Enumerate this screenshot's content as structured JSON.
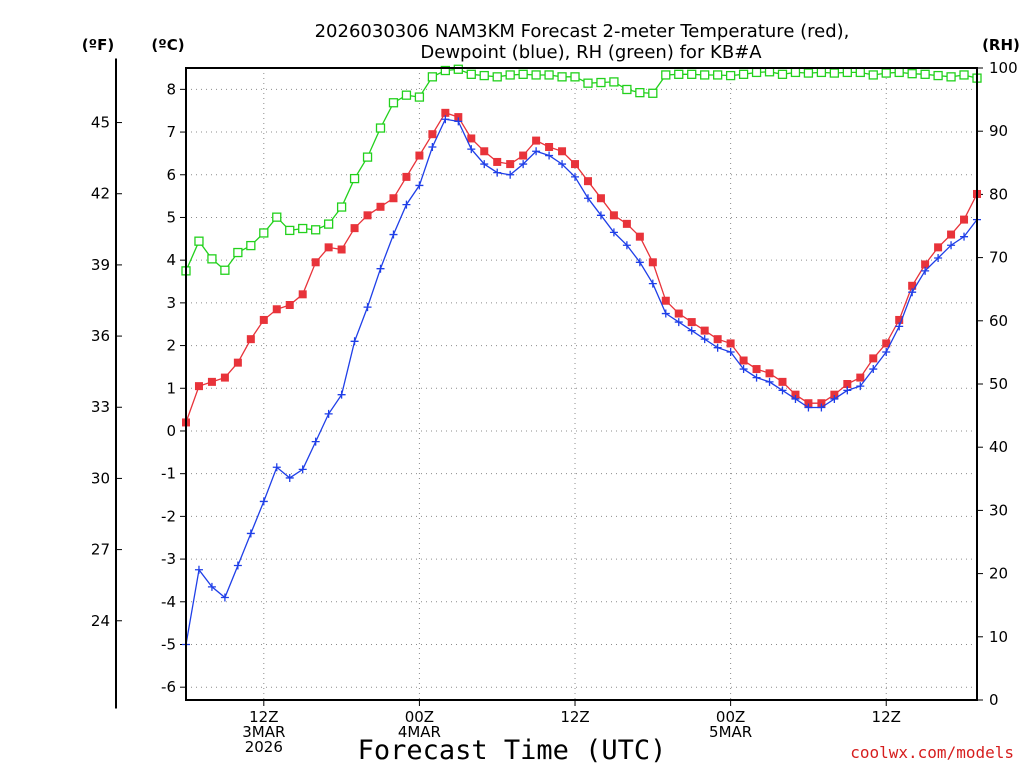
{
  "chart_data": {
    "type": "line",
    "title": [
      "2026030306 NAM3KM Forecast 2-meter Temperature (red),",
      "Dewpoint (blue), RH (green) for KB#A"
    ],
    "xlabel": "Forecast Time (UTC)",
    "credit": "coolwx.com/models",
    "units": {
      "fahrenheit": "(ºF)",
      "celsius": "(ºC)",
      "rh": "(RH)"
    },
    "x_range_hours": [
      0,
      61
    ],
    "x_ticks": [
      {
        "hour": 6,
        "lines": [
          "12Z",
          "3MAR",
          "2026"
        ]
      },
      {
        "hour": 18,
        "lines": [
          "00Z",
          "4MAR"
        ]
      },
      {
        "hour": 30,
        "lines": [
          "12Z"
        ]
      },
      {
        "hour": 42,
        "lines": [
          "00Z",
          "5MAR"
        ]
      },
      {
        "hour": 54,
        "lines": [
          "12Z"
        ]
      }
    ],
    "celsius_axis": {
      "range": [
        -6.3,
        8.5
      ],
      "ticks": [
        "-6",
        "-5",
        "-4",
        "-3",
        "-2",
        "-1",
        "0",
        "1",
        "2",
        "3",
        "4",
        "5",
        "6",
        "7",
        "8"
      ]
    },
    "fahrenheit_axis": {
      "ticks": [
        "24",
        "27",
        "30",
        "33",
        "36",
        "39",
        "42",
        "45"
      ]
    },
    "rh_axis": {
      "range": [
        0,
        100
      ],
      "ticks": [
        "0",
        "10",
        "20",
        "30",
        "40",
        "50",
        "60",
        "70",
        "80",
        "90",
        "100"
      ]
    },
    "hours": [
      0,
      1,
      2,
      3,
      4,
      5,
      6,
      7,
      8,
      9,
      10,
      11,
      12,
      13,
      14,
      15,
      16,
      17,
      18,
      19,
      20,
      21,
      22,
      23,
      24,
      25,
      26,
      27,
      28,
      29,
      30,
      31,
      32,
      33,
      34,
      35,
      36,
      37,
      38,
      39,
      40,
      41,
      42,
      43,
      44,
      45,
      46,
      47,
      48,
      49,
      50,
      51,
      52,
      53,
      54,
      55,
      56,
      57,
      58,
      59,
      60,
      61
    ],
    "series": [
      {
        "name": "Temperature",
        "color": "#e8333a",
        "marker": "filled-square",
        "axis": "celsius",
        "values": [
          0.2,
          1.05,
          1.15,
          1.25,
          1.6,
          2.15,
          2.6,
          2.85,
          2.95,
          3.2,
          3.95,
          4.3,
          4.25,
          4.75,
          5.05,
          5.25,
          5.45,
          5.95,
          6.45,
          6.95,
          7.45,
          7.35,
          6.85,
          6.55,
          6.3,
          6.25,
          6.45,
          6.8,
          6.65,
          6.55,
          6.25,
          5.85,
          5.45,
          5.05,
          4.85,
          4.55,
          3.95,
          3.05,
          2.75,
          2.55,
          2.35,
          2.15,
          2.05,
          1.65,
          1.45,
          1.35,
          1.15,
          0.85,
          0.65,
          0.65,
          0.85,
          1.1,
          1.25,
          1.7,
          2.05,
          2.6,
          3.4,
          3.9,
          4.3,
          4.6,
          4.95,
          5.55
        ]
      },
      {
        "name": "Dewpoint",
        "color": "#1f3fe8",
        "marker": "plus",
        "axis": "celsius",
        "values": [
          -5.0,
          -3.25,
          -3.65,
          -3.9,
          -3.15,
          -2.4,
          -1.65,
          -0.85,
          -1.1,
          -0.9,
          -0.25,
          0.4,
          0.85,
          2.1,
          2.9,
          3.8,
          4.6,
          5.3,
          5.75,
          6.65,
          7.3,
          7.25,
          6.6,
          6.25,
          6.05,
          6.0,
          6.25,
          6.55,
          6.45,
          6.25,
          5.95,
          5.45,
          5.05,
          4.65,
          4.35,
          3.95,
          3.45,
          2.75,
          2.55,
          2.35,
          2.15,
          1.95,
          1.85,
          1.45,
          1.25,
          1.15,
          0.95,
          0.75,
          0.55,
          0.55,
          0.75,
          0.95,
          1.05,
          1.45,
          1.85,
          2.45,
          3.25,
          3.75,
          4.05,
          4.35,
          4.55,
          4.95
        ]
      },
      {
        "name": "Relative Humidity",
        "color": "#22d11c",
        "marker": "open-square",
        "axis": "rh",
        "values": [
          67.9,
          72.6,
          69.8,
          68.0,
          70.8,
          71.9,
          73.9,
          76.4,
          74.3,
          74.6,
          74.4,
          75.3,
          78.0,
          82.5,
          85.9,
          90.5,
          94.5,
          95.7,
          95.4,
          98.6,
          99.6,
          99.8,
          99.0,
          98.8,
          98.6,
          98.9,
          99.0,
          98.9,
          98.9,
          98.6,
          98.6,
          97.6,
          97.7,
          97.8,
          96.6,
          96.1,
          96.0,
          98.9,
          99.0,
          99.0,
          98.9,
          98.9,
          98.8,
          99.0,
          99.3,
          99.4,
          99.0,
          99.3,
          99.2,
          99.3,
          99.2,
          99.3,
          99.3,
          98.9,
          99.2,
          99.3,
          99.1,
          99.0,
          98.8,
          98.6,
          98.9,
          98.4
        ]
      }
    ]
  }
}
